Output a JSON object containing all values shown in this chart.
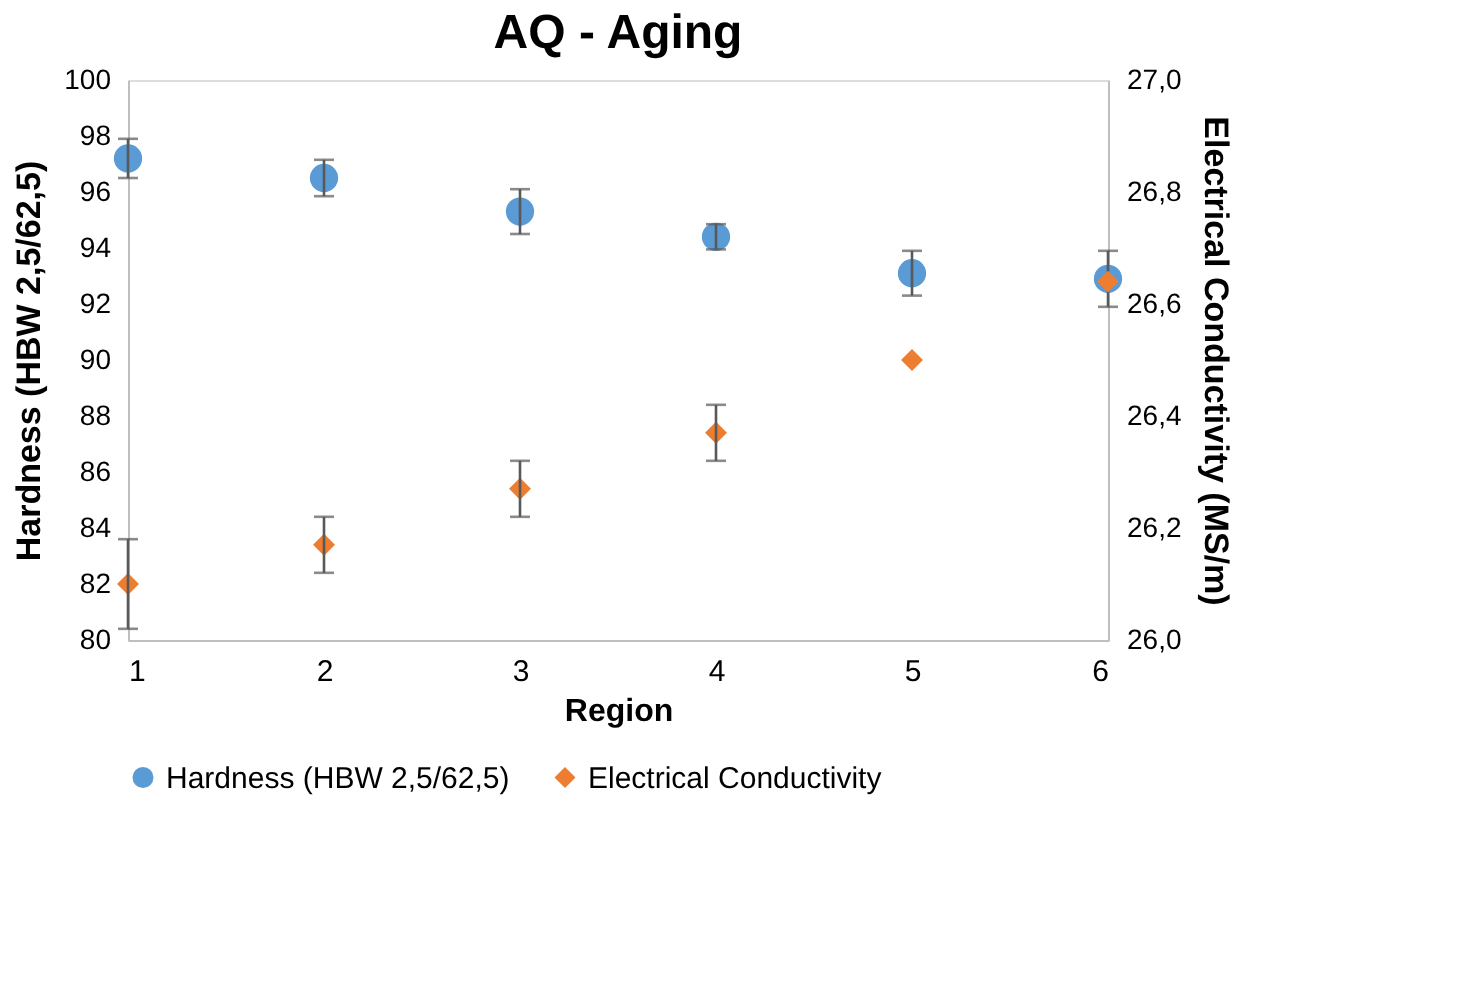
{
  "chart_data": {
    "type": "scatter",
    "title": "AQ - Aging",
    "xlabel": "Region",
    "ylabel": "Hardness (HBW 2,5/62,5)",
    "y2label": "Electrical Conductivity (MS/m)",
    "x": [
      1,
      2,
      3,
      4,
      5,
      6
    ],
    "series": [
      {
        "name": "Hardness (HBW 2,5/62,5)",
        "color": "#5b9bd5",
        "marker": "circle",
        "values": [
          97.2,
          96.5,
          95.3,
          94.4,
          93.1,
          92.9
        ],
        "errors": [
          0.7,
          0.65,
          0.8,
          0.45,
          0.8,
          1.0
        ]
      },
      {
        "name": "Electrical Conductivity",
        "color": "#ed7d31",
        "marker": "diamond",
        "axis": "y2",
        "values": [
          26.1,
          26.17,
          26.27,
          26.37,
          26.5,
          26.64
        ],
        "errors": [
          0.08,
          0.05,
          0.05,
          0.05,
          null,
          null
        ]
      }
    ],
    "xlim": [
      1,
      6
    ],
    "xticks": [
      1,
      2,
      3,
      4,
      5,
      6
    ],
    "ylim": [
      80,
      100
    ],
    "yticks": [
      80,
      82,
      84,
      86,
      88,
      90,
      92,
      94,
      96,
      98,
      100
    ],
    "y2lim": [
      26.0,
      27.0
    ],
    "y2ticks": [
      {
        "value": 26.0,
        "label": "26,0"
      },
      {
        "value": 26.2,
        "label": "26,2"
      },
      {
        "value": 26.4,
        "label": "26,4"
      },
      {
        "value": 26.6,
        "label": "26,6"
      },
      {
        "value": 26.8,
        "label": "26,8"
      },
      {
        "value": 27.0,
        "label": "27,0"
      }
    ],
    "grid": false,
    "legend": "bottom"
  }
}
